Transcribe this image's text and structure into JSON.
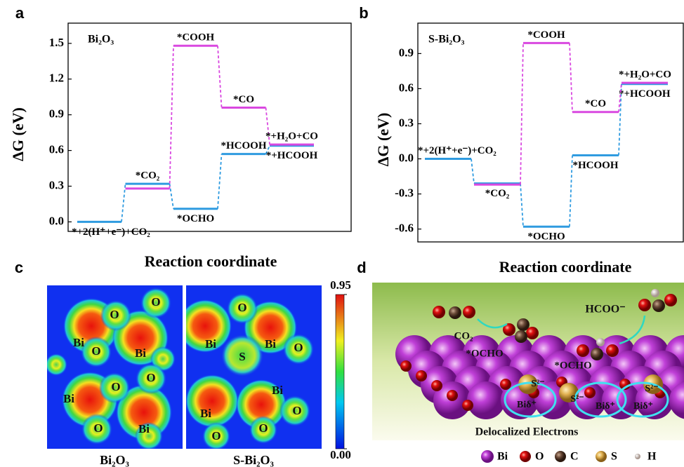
{
  "chart_data": [
    {
      "type": "energy-profile",
      "panel_label": "a",
      "inset_label": "Bi₂O₃",
      "y_label": "ΔG (eV)",
      "x_label": "Reaction coordinate",
      "ylim": [
        -0.08,
        1.67
      ],
      "yticks": [
        {
          "value": 0,
          "label": "0.0"
        },
        0.3,
        0.6,
        0.9,
        1.2,
        1.5
      ],
      "series": [
        {
          "color": "#2f9be0",
          "values": [
            0,
            0.32,
            0.11,
            0.57,
            0.64
          ],
          "labels": [
            "*+2(H⁺+e⁻)+CO₂",
            "*CO₂",
            "*OCHO",
            "*HCOOH",
            "*+HCOOH"
          ]
        },
        {
          "color": "#d948e0",
          "values": [
            null,
            0.28,
            1.48,
            0.96,
            0.65
          ],
          "labels": [
            null,
            null,
            "*COOH",
            "*CO",
            "*+H₂O+CO"
          ]
        }
      ]
    },
    {
      "type": "energy-profile",
      "panel_label": "b",
      "inset_label": "S-Bi₂O₃",
      "y_label": "ΔG (eV)",
      "x_label": "Reaction coordinate",
      "ylim": [
        -0.71,
        1.16
      ],
      "yticks": [
        -0.6,
        -0.3,
        {
          "value": 0,
          "label": "0.0"
        },
        0.3,
        0.6,
        0.9
      ],
      "series": [
        {
          "color": "#2f9be0",
          "values": [
            0,
            -0.21,
            -0.58,
            0.03,
            0.64
          ],
          "labels": [
            "*+2(H⁺+e⁻)+CO₂",
            "*CO₂",
            "*OCHO",
            "*HCOOH",
            "*+HCOOH"
          ]
        },
        {
          "color": "#d948e0",
          "values": [
            null,
            -0.22,
            0.99,
            0.4,
            0.65
          ],
          "labels": [
            null,
            null,
            "*COOH",
            "*CO",
            "*+H₂O+CO"
          ]
        }
      ]
    }
  ],
  "panel_c": {
    "label": "c",
    "maps": [
      {
        "caption": "Bi₂O₃",
        "atoms": [
          "O",
          "O",
          "Bi",
          "O",
          "Bi",
          "O",
          "O",
          "Bi",
          "O",
          "Bi"
        ]
      },
      {
        "caption": "S-Bi₂O₃",
        "atoms": [
          "O",
          "Bi",
          "Bi",
          "O",
          "S",
          "Bi",
          "O",
          "Bi",
          "O",
          "O"
        ]
      }
    ],
    "colorbar": {
      "ticks": [
        {
          "value": 0,
          "label": "0.00"
        },
        0.95
      ]
    }
  },
  "panel_d": {
    "label": "d",
    "texts": [
      "CO₂",
      "*OCHO",
      "*OCHO",
      "HCOO⁻",
      "S²⁻",
      "S²⁻",
      "S²⁻",
      "Biδ⁺",
      "Biδ⁺",
      "Biδ⁺",
      "Delocalized Electrons"
    ],
    "legend": [
      "Bi",
      "O",
      "C",
      "S",
      "H"
    ]
  }
}
